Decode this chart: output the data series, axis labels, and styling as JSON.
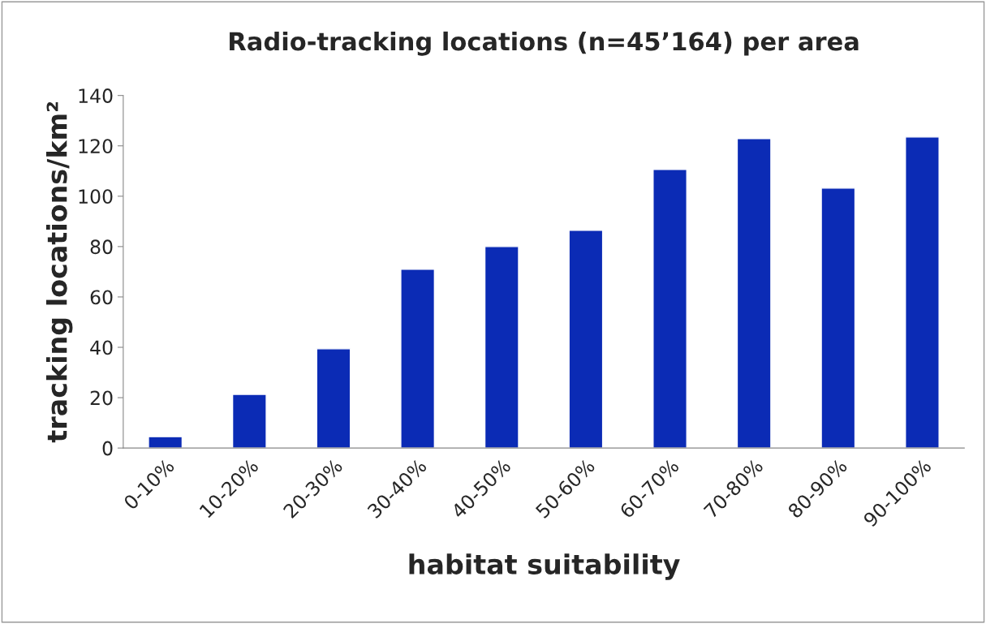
{
  "chart_data": {
    "type": "bar",
    "title": "Radio-tracking locations (n=45’164) per area",
    "xlabel": "habitat suitability",
    "ylabel": "tracking locations/km²",
    "categories": [
      "0-10%",
      "10-20%",
      "20-30%",
      "30-40%",
      "40-50%",
      "50-60%",
      "60-70%",
      "70-80%",
      "80-90%",
      "90-100%"
    ],
    "values": [
      4.5,
      21.3,
      39.4,
      71,
      80,
      86.5,
      110.6,
      122.9,
      103.2,
      123.5
    ],
    "color": "#0b2bb5",
    "ylim": [
      0,
      140
    ],
    "yticks": [
      0,
      20,
      40,
      60,
      80,
      100,
      120,
      140
    ],
    "grid": false
  }
}
